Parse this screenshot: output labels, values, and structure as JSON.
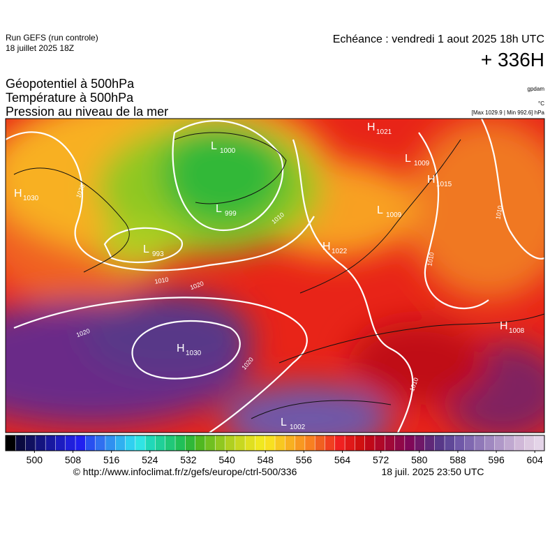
{
  "header": {
    "run": "Run GEFS (run controle)",
    "run_date": "18 juillet 2025 18Z",
    "valid": "Echéance : vendredi 1 aout 2025 18h UTC",
    "lead": "+ 336H",
    "fields": [
      "Géopotentiel à 500hPa",
      "Température à 500hPa",
      "Pression au niveau de la mer"
    ],
    "units": [
      "gpdam",
      "°C",
      "[Max 1029.9 | Min 992.6] hPa"
    ]
  },
  "centers": [
    {
      "kind": "H",
      "value": 1030
    },
    {
      "kind": "L",
      "value": 1000
    },
    {
      "kind": "L",
      "value": 999
    },
    {
      "kind": "L",
      "value": 993
    },
    {
      "kind": "H",
      "value": 1030
    },
    {
      "kind": "H",
      "value": 1021
    },
    {
      "kind": "L",
      "value": 1009
    },
    {
      "kind": "H",
      "value": 1015
    },
    {
      "kind": "L",
      "value": 1009
    },
    {
      "kind": "H",
      "value": 1022
    },
    {
      "kind": "H",
      "value": 1008
    },
    {
      "kind": "L",
      "value": 1002
    }
  ],
  "isobar_labels": [
    1020,
    1010,
    1020,
    1020,
    1020,
    1010,
    1010,
    1010,
    1010
  ],
  "colorbar": {
    "lim": [
      494,
      606
    ],
    "ticks": [
      500,
      508,
      516,
      524,
      532,
      540,
      548,
      556,
      564,
      572,
      580,
      588,
      596,
      604
    ],
    "colors": [
      "#000000",
      "#0a0a40",
      "#101060",
      "#141480",
      "#1818a0",
      "#1c1cc0",
      "#2020dc",
      "#2020f0",
      "#2850f0",
      "#3070f0",
      "#3090f0",
      "#30b0f0",
      "#30d0f0",
      "#30e4e4",
      "#20d8b8",
      "#20d098",
      "#20c878",
      "#20c058",
      "#30b838",
      "#50b820",
      "#70c020",
      "#90c820",
      "#b0d020",
      "#c8d820",
      "#e0e020",
      "#f0e820",
      "#f8e020",
      "#f8c820",
      "#f8b020",
      "#f89820",
      "#f88020",
      "#f06020",
      "#f04020",
      "#f02020",
      "#e01818",
      "#d01010",
      "#c00818",
      "#b00828",
      "#a00838",
      "#900848",
      "#800858",
      "#701868",
      "#602878",
      "#583888",
      "#604898",
      "#7058a8",
      "#8068b0",
      "#9078b8",
      "#a088c0",
      "#b098c8",
      "#c0a8d0",
      "#d0b8d8",
      "#dcc8e0",
      "#e4d4e8"
    ]
  },
  "footer": {
    "source": "© http://www.infoclimat.fr/z/gefs/europe/ctrl-500/336",
    "generated": "18 juil. 2025 23:50 UTC"
  }
}
